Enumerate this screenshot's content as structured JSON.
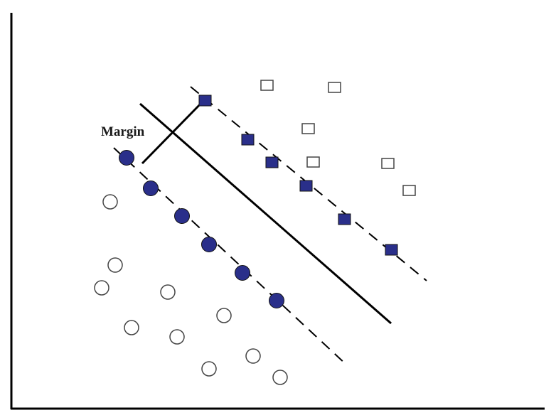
{
  "diagram": {
    "margin_label": "Margin",
    "colors": {
      "support_fill": "#2a2f8a",
      "outline": "#444444",
      "line": "#000000",
      "background": "#ffffff"
    }
  }
}
